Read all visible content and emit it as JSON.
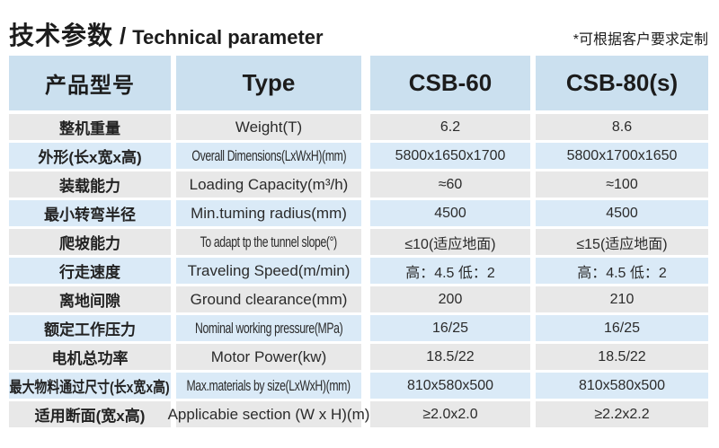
{
  "header": {
    "title_zh": "技术参数",
    "title_sep": "/",
    "title_en": "Technical parameter",
    "note": "*可根据客户要求定制"
  },
  "colors": {
    "header_bg": "#cbe0ef",
    "row_blue_bg": "#daeaf7",
    "row_gray_bg": "#e8e8e8",
    "text": "#262626",
    "background": "#ffffff"
  },
  "table": {
    "headers": [
      "产品型号",
      "Type",
      "CSB-60",
      "CSB-80(s)"
    ],
    "column_keys": [
      "param_zh",
      "param_en",
      "csb60",
      "csb80"
    ],
    "rows": [
      [
        "整机重量",
        "Weight(T)",
        "6.2",
        "8.6"
      ],
      [
        "外形(长x宽x高)",
        "Overall Dimensions(LxWxH)(mm)",
        "5800x1650x1700",
        "5800x1700x1650"
      ],
      [
        "装载能力",
        "Loading Capacity(m³/h)",
        "≈60",
        "≈100"
      ],
      [
        "最小转弯半径",
        "Min.tuming radius(mm)",
        "4500",
        "4500"
      ],
      [
        "爬坡能力",
        "To adapt tp the tunnel slope(°)",
        "≤10(适应地面)",
        "≤15(适应地面)"
      ],
      [
        "行走速度",
        "Traveling Speed(m/min)",
        "高：4.5 低：2",
        "高：4.5 低：2"
      ],
      [
        "离地间隙",
        "Ground clearance(mm)",
        "200",
        "210"
      ],
      [
        "额定工作压力",
        "Nominal working pressure(MPa)",
        "16/25",
        "16/25"
      ],
      [
        "电机总功率",
        "Motor Power(kw)",
        "18.5/22",
        "18.5/22"
      ],
      [
        "最大物料通过尺寸(长x宽x高)",
        "Max.materials by size(LxWxH)(mm)",
        "810x580x500",
        "810x580x500"
      ],
      [
        "适用断面(宽x高)",
        "Applicabie section (W x H)(m)",
        "≥2.0x2.0",
        "≥2.2x2.2"
      ]
    ]
  }
}
